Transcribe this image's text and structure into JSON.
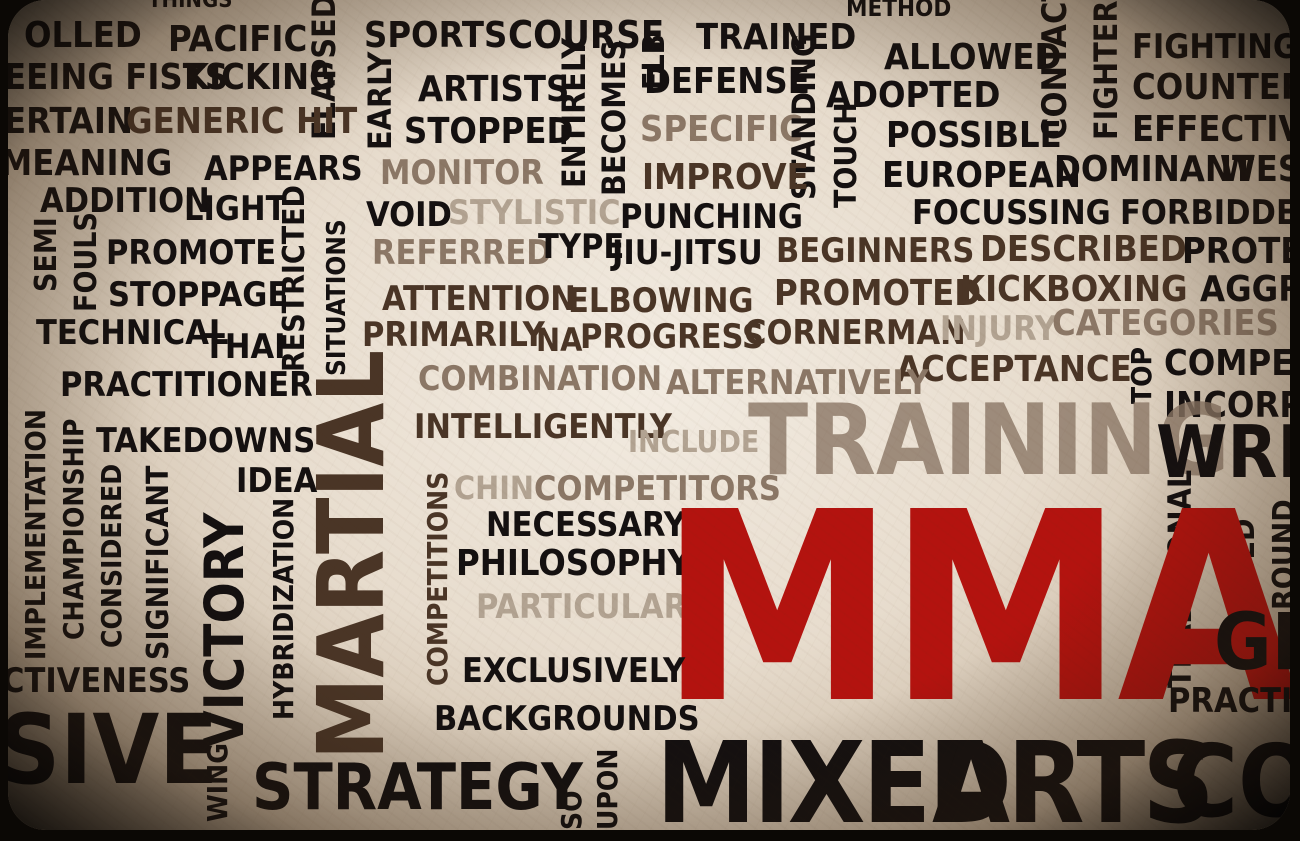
{
  "words": {
    "things": "THINGS",
    "method": "METHOD",
    "rolled": "OLLED",
    "pacific": "PACIFIC",
    "sports": "SPORTS",
    "course": "COURSE",
    "elb": "ELB",
    "trained": "TRAINED",
    "allowed": "ALLOWED",
    "fighting": "FIGHTING",
    "seeing_fists": "EEING FISTS",
    "kicking": "KICKING",
    "elapsed": "ELAPSED",
    "artists": "ARTISTS",
    "defense": "DEFENSE",
    "adopted": "ADOPTED",
    "contact": "CONTACT",
    "fighters": "FIGHTERS",
    "counter": "COUNTER",
    "certain": "ERTAIN",
    "generic_hit": "GENERIC HIT",
    "early": "EARLY",
    "stopped": "STOPPED",
    "entirely": "ENTIRELY",
    "becomes": "BECOMES",
    "specific": "SPECIFIC",
    "standing": "STANDING",
    "touch": "TOUCH",
    "possible": "POSSIBLE",
    "effective": "EFFECTIVE",
    "meaning": "MEANING",
    "appears": "APPEARS",
    "monitor": "MONITOR",
    "improve": "IMPROVE",
    "european": "EUROPEAN",
    "dominant": "DOMINANT",
    "west": "WEST",
    "addition": "ADDITION",
    "light": "LIGHT",
    "restricted": "RESTRICTED",
    "void": "VOID",
    "stylistic": "STYLISTIC",
    "punching": "PUNCHING",
    "focussing": "FOCUSSING",
    "forbidden": "FORBIDDEN",
    "semi": "SEMI",
    "fouls": "FOULS",
    "promote": "PROMOTE",
    "situations": "SITUATIONS",
    "referred": "REFERRED",
    "type": "TYPE",
    "jiu_jitsu": "JIU-JITSU",
    "beginners": "BEGINNERS",
    "described": "DESCRIBED",
    "protec": "PROTEC",
    "stoppage": "STOPPAGE",
    "attention": "ATTENTION",
    "elbowing": "ELBOWING",
    "promoted": "PROMOTED",
    "kickboxing": "KICKBOXING",
    "aggre": "AGGRE",
    "technical": "TECHNICAL",
    "primarily": "PRIMARILY",
    "na": "NA",
    "progress": "PROGRESS",
    "cornerman": "CORNERMAN",
    "injury": "INJURY",
    "categories": "CATEGORIES",
    "thai": "THAI",
    "acceptance": "ACCEPTANCE",
    "top": "TOP",
    "compet": "COMPET",
    "practitioner": "PRACTITIONER",
    "combination": "COMBINATION",
    "alternatively": "ALTERNATIVELY",
    "incorpo": "INCORPO",
    "implementation": "IMPLEMENTATION",
    "takedowns": "TAKEDOWNS",
    "intelligently": "INTELLIGENTLY",
    "include": "INCLUDE",
    "training": "TRAINING",
    "wres": "WRES",
    "championship": "CHAMPIONSHIP",
    "considered": "CONSIDERED",
    "idea": "IDEA",
    "competitions": "COMPETITIONS",
    "chin": "CHIN",
    "competitors": "COMPETITORS",
    "significant": "SIGNIFICANT",
    "victory": "VICTORY",
    "hybridization": "HYBRIDIZATION",
    "martial": "MARTIAL",
    "necessary": "NECESSARY",
    "philosophy": "PHILOSOPHY",
    "traditional": "TRADITIONAL",
    "judged": "JUDGED",
    "round": "ROUND",
    "particular": "PARTICULAR",
    "mma": "MMA",
    "gr": "GR",
    "activeness": "CTIVENESS",
    "exclusively": "EXCLUSIVELY",
    "practit": "PRACTIT",
    "sive": "SIVE",
    "backgrounds": "BACKGROUNDS",
    "wing": "WING",
    "strategy": "STRATEGY",
    "so": "SO",
    "upon": "UPON",
    "mixed": "MIXED",
    "arts": "ARTS",
    "co": "CO"
  },
  "colors": {
    "black": "#141010",
    "brown": "#4a3526",
    "mid_brown": "#8b7766",
    "light_brown": "#b2a392",
    "red": "#b3130f"
  }
}
